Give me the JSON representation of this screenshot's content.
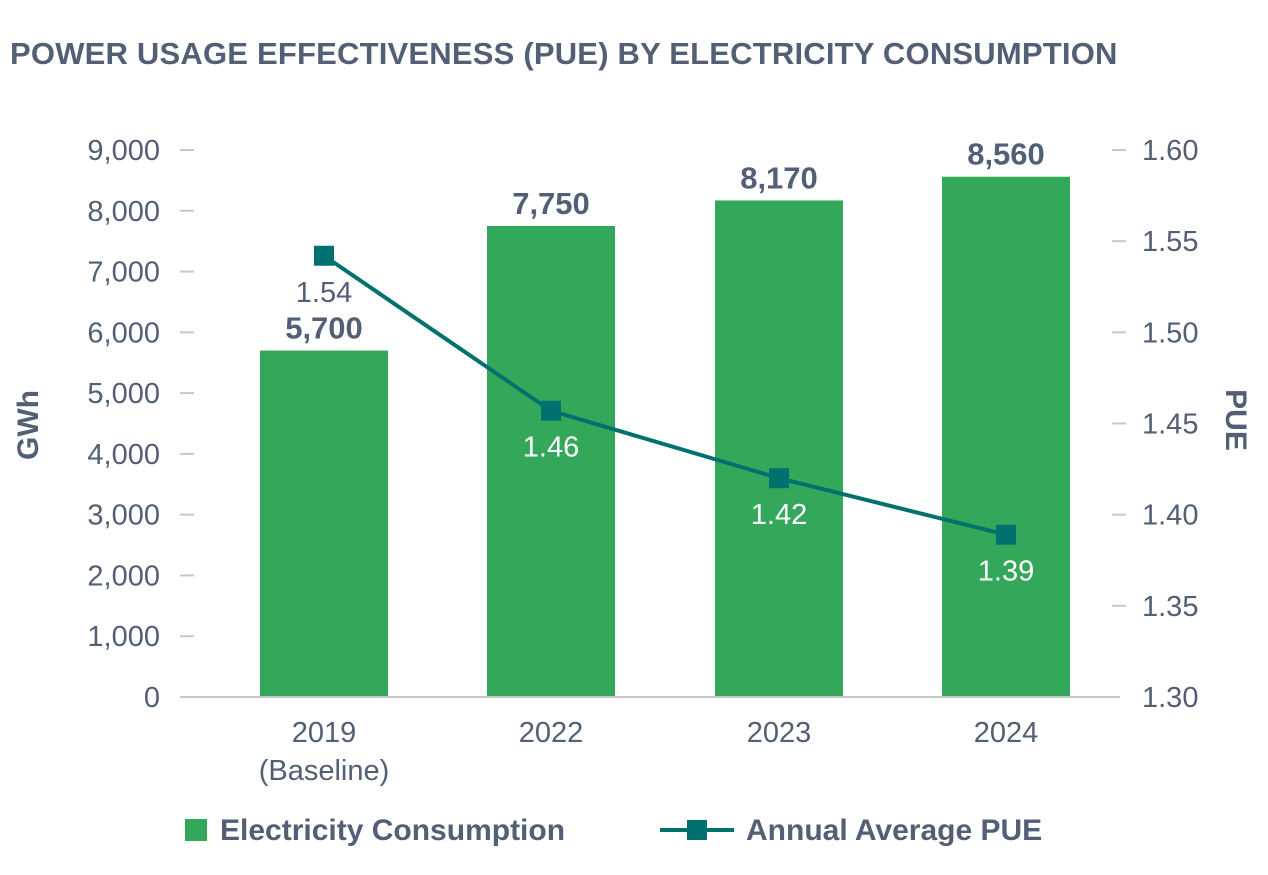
{
  "title": "POWER USAGE EFFECTIVENESS (PUE) BY ELECTRICITY CONSUMPTION",
  "colors": {
    "bar": "#34a85a",
    "line": "#00716e",
    "text": "#525f74",
    "axis": "#c8c8c8"
  },
  "chart_data": {
    "type": "bar",
    "categories": [
      [
        "2019",
        "(Baseline)"
      ],
      [
        "2022"
      ],
      [
        "2023"
      ],
      [
        "2024"
      ]
    ],
    "series": [
      {
        "name": "Electricity Consumption",
        "type": "bar",
        "axis": "left",
        "values": [
          5700,
          7750,
          8170,
          8560
        ],
        "labels": [
          "5,700",
          "7,750",
          "8,170",
          "8,560"
        ]
      },
      {
        "name": "Annual Average PUE",
        "type": "line",
        "axis": "right",
        "marker": "square",
        "values": [
          1.542,
          1.457,
          1.42,
          1.389
        ],
        "labels": [
          "1.54",
          "1.46",
          "1.42",
          "1.39"
        ]
      }
    ],
    "y_left": {
      "label": "GWh",
      "min": 0,
      "max": 9000,
      "step": 1000,
      "ticks": [
        "0",
        "1,000",
        "2,000",
        "3,000",
        "4,000",
        "5,000",
        "6,000",
        "7,000",
        "8,000",
        "9,000"
      ]
    },
    "y_right": {
      "label": "PUE",
      "min": 1.3,
      "max": 1.6,
      "step": 0.05,
      "ticks": [
        "1.30",
        "1.35",
        "1.40",
        "1.45",
        "1.50",
        "1.55",
        "1.60"
      ]
    },
    "legend": {
      "position": "bottom"
    },
    "grid": false
  }
}
